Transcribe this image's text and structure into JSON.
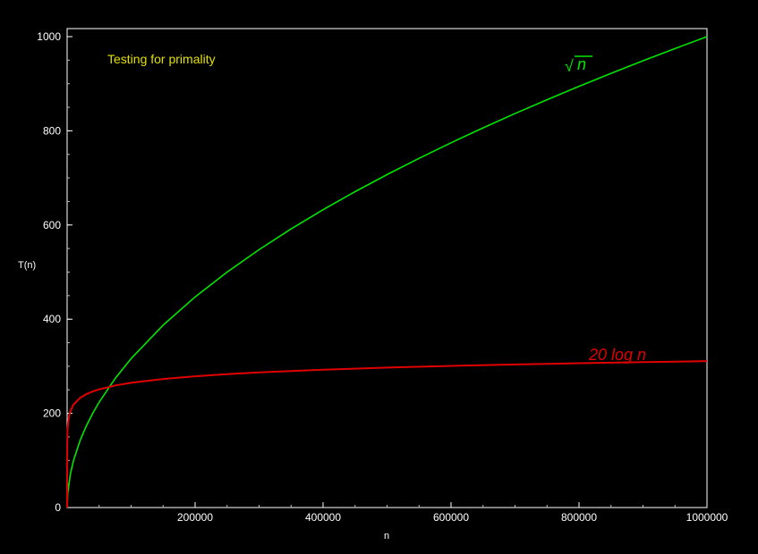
{
  "chart_data": {
    "type": "line",
    "title": "Testing for primality",
    "xlabel": "n",
    "ylabel": "T(n)",
    "xlim": [
      0,
      1000000
    ],
    "ylim": [
      0,
      1000
    ],
    "xticks": [
      "200000",
      "400000",
      "600000",
      "800000",
      "1000000"
    ],
    "yticks": [
      "0",
      "200",
      "400",
      "600",
      "800",
      "1000"
    ],
    "grid": false,
    "series": [
      {
        "name": "√n",
        "label_radical": "√",
        "label_var": "n",
        "color": "#00e600",
        "x": [
          0,
          1000,
          5000,
          10000,
          20000,
          30000,
          40000,
          50000,
          75000,
          100000,
          150000,
          200000,
          250000,
          300000,
          350000,
          400000,
          450000,
          500000,
          550000,
          600000,
          650000,
          700000,
          750000,
          800000,
          850000,
          900000,
          950000,
          1000000
        ],
        "values": [
          0,
          31.6,
          70.7,
          100,
          141.4,
          173.2,
          200,
          223.6,
          273.9,
          316.2,
          387.3,
          447.2,
          500,
          547.7,
          591.6,
          632.5,
          670.8,
          707.1,
          741.6,
          774.6,
          806.2,
          836.7,
          866,
          894.4,
          922,
          948.7,
          974.7,
          1000
        ]
      },
      {
        "name": "20 log n",
        "color": "#e00000",
        "x": [
          50,
          200,
          500,
          1000,
          2000,
          5000,
          10000,
          20000,
          30000,
          40000,
          50000,
          75000,
          100000,
          150000,
          200000,
          250000,
          300000,
          400000,
          500000,
          600000,
          700000,
          800000,
          900000,
          1000000
        ],
        "values": [
          112.9,
          140.6,
          158.9,
          172.7,
          186.6,
          204.9,
          218.7,
          232.6,
          240.7,
          246.5,
          250.9,
          259.1,
          264.9,
          273,
          278.8,
          283.3,
          286.9,
          292.7,
          297.1,
          300.8,
          303.8,
          306.5,
          308.8,
          310.9
        ]
      }
    ]
  }
}
